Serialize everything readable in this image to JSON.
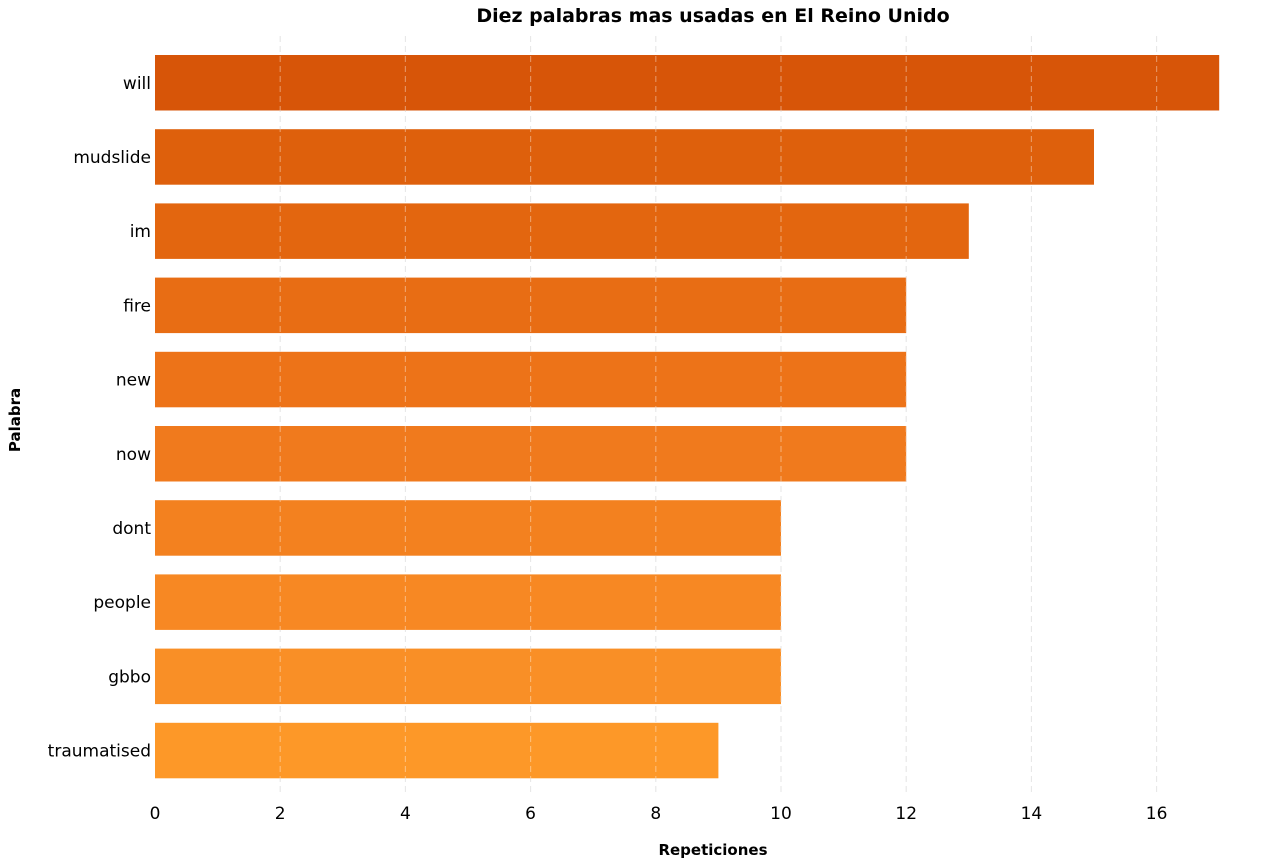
{
  "chart_data": {
    "type": "bar",
    "orientation": "horizontal",
    "title": "Diez palabras mas usadas en El Reino Unido",
    "xlabel": "Repeticiones",
    "ylabel": "Palabra",
    "categories": [
      "will",
      "mudslide",
      "im",
      "fire",
      "new",
      "now",
      "dont",
      "people",
      "gbbo",
      "traumatised"
    ],
    "values": [
      17,
      15,
      13,
      12,
      12,
      12,
      10,
      10,
      10,
      9
    ],
    "xlim": [
      0,
      17
    ],
    "xticks": [
      "0",
      "2",
      "4",
      "6",
      "8",
      "10",
      "12",
      "14",
      "16"
    ],
    "grid": "vertical dashed",
    "colors": [
      "#d75508",
      "#de600c",
      "#e3660f",
      "#e86d14",
      "#ed7318",
      "#f07a1d",
      "#f3811f",
      "#f78823",
      "#f98f26",
      "#fd9828"
    ]
  }
}
